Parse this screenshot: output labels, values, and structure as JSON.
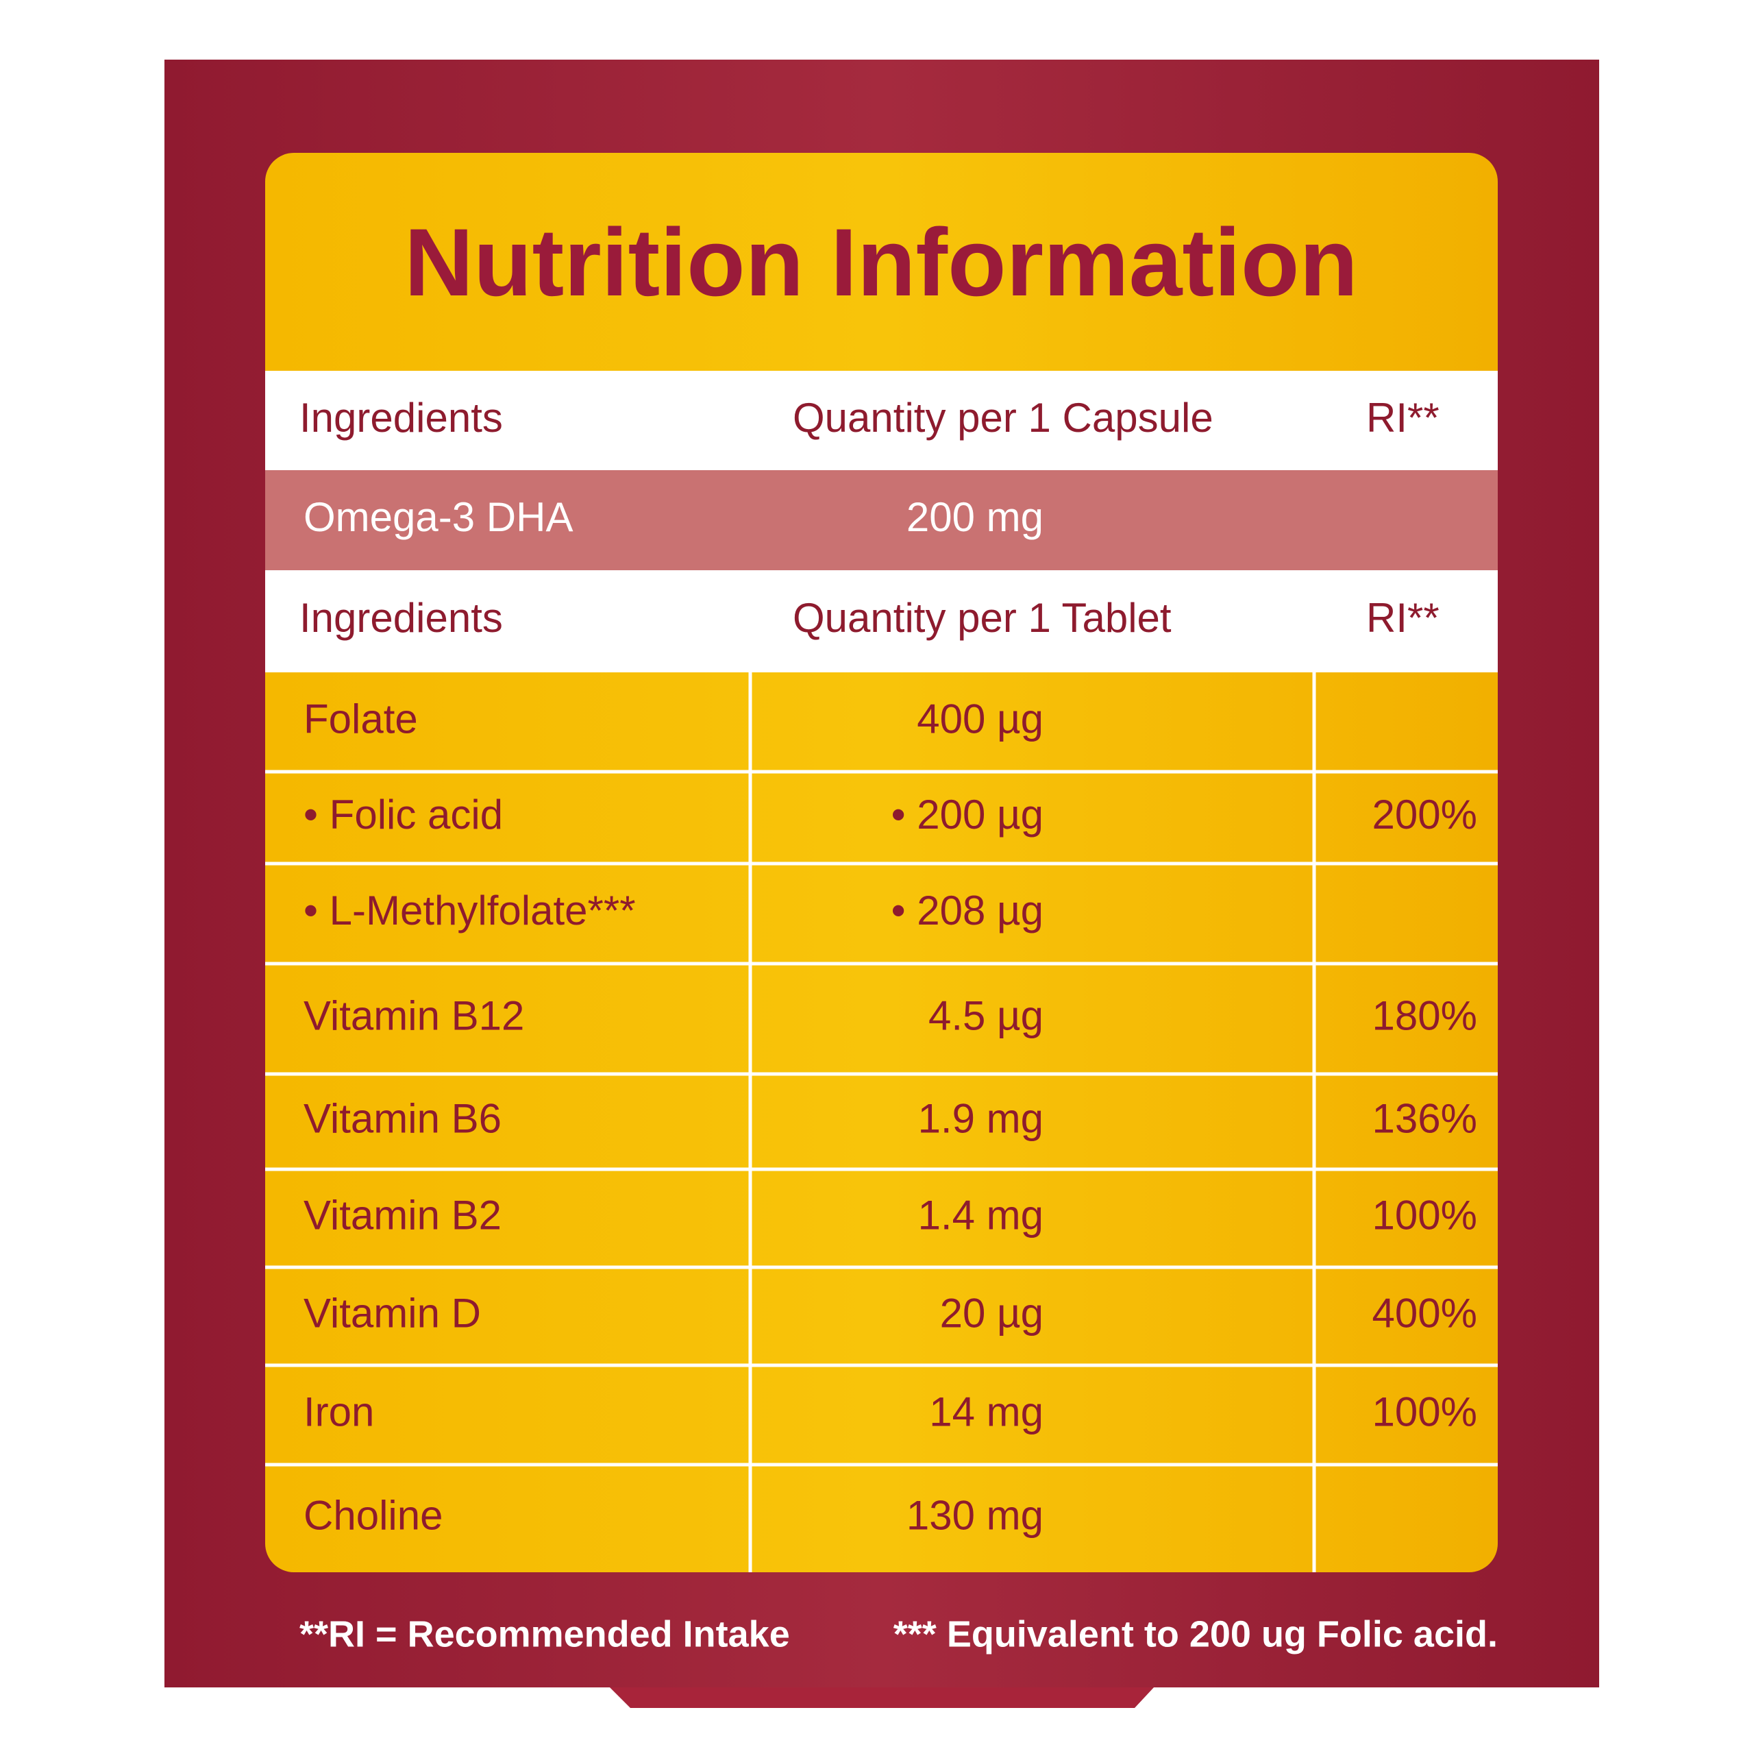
{
  "title": "Nutrition Information",
  "capsule_table": {
    "header": [
      "Ingredients",
      "Quantity per 1 Capsule",
      "RI**"
    ],
    "rows": [
      [
        "Omega-3 DHA",
        "200 mg"
      ]
    ]
  },
  "tablet_table": {
    "header": [
      "Ingredients",
      "Quantity per 1 Tablet",
      "RI**"
    ],
    "rows": [
      [
        "Folate",
        "400 µg"
      ],
      [
        "• Folic acid",
        "• 200 µg",
        "200%"
      ],
      [
        "• L-Methylfolate***",
        "• 208 µg"
      ],
      [
        "Vitamin B12",
        "4.5 µg",
        "180%"
      ],
      [
        "Vitamin B6",
        "1.9 mg",
        "136%"
      ],
      [
        "Vitamin B2",
        "1.4 mg",
        "100%"
      ],
      [
        "Vitamin D",
        "20 µg",
        "400%"
      ],
      [
        "Iron",
        "14 mg",
        "100%"
      ],
      [
        "Choline",
        "130 mg"
      ]
    ]
  },
  "footnotes": [
    "**RI = Recommended Intake",
    "*** Equivalent to 200 ug Folic acid."
  ]
}
